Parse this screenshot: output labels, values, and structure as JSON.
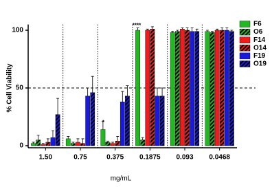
{
  "chart_data": {
    "type": "bar",
    "x_label": "mg/mL",
    "y_label": "% Cell Viability",
    "categories": [
      "1.50",
      "0.75",
      "0.375",
      "0.1875",
      "0.093",
      "0.0468"
    ],
    "series": [
      {
        "name": "F6",
        "color": "#22b822",
        "pattern": "solid",
        "values": [
          2,
          6,
          14,
          100,
          98,
          99
        ],
        "errors": [
          1,
          2,
          7,
          2,
          1,
          1
        ]
      },
      {
        "name": "O6",
        "color": "#22b822",
        "pattern": "hatch",
        "values": [
          5,
          2,
          3,
          5,
          99,
          98
        ],
        "errors": [
          4,
          1,
          1,
          2,
          1,
          1
        ]
      },
      {
        "name": "F14",
        "color": "#ee1c1c",
        "pattern": "solid",
        "values": [
          1,
          3,
          2,
          100,
          101,
          100
        ],
        "errors": [
          1,
          3,
          1,
          1,
          1,
          1
        ]
      },
      {
        "name": "O14",
        "color": "#ee1c1c",
        "pattern": "hatch",
        "values": [
          3,
          2,
          4,
          101,
          100,
          100
        ],
        "errors": [
          3,
          4,
          4,
          2,
          2,
          2
        ]
      },
      {
        "name": "F19",
        "color": "#1a1adc",
        "pattern": "solid",
        "values": [
          7,
          43,
          38,
          43,
          99,
          100
        ],
        "errors": [
          6,
          7,
          9,
          7,
          3,
          2
        ]
      },
      {
        "name": "O19",
        "color": "#1a1adc",
        "pattern": "hatch",
        "values": [
          27,
          46,
          43,
          43,
          99,
          99
        ],
        "errors": [
          14,
          14,
          9,
          7,
          2,
          1
        ]
      }
    ],
    "annotations": [
      "****",
      "*"
    ],
    "reference_line": 50,
    "ylim": [
      0,
      105
    ],
    "yticks": [
      0,
      50,
      100
    ],
    "legend": "right"
  }
}
